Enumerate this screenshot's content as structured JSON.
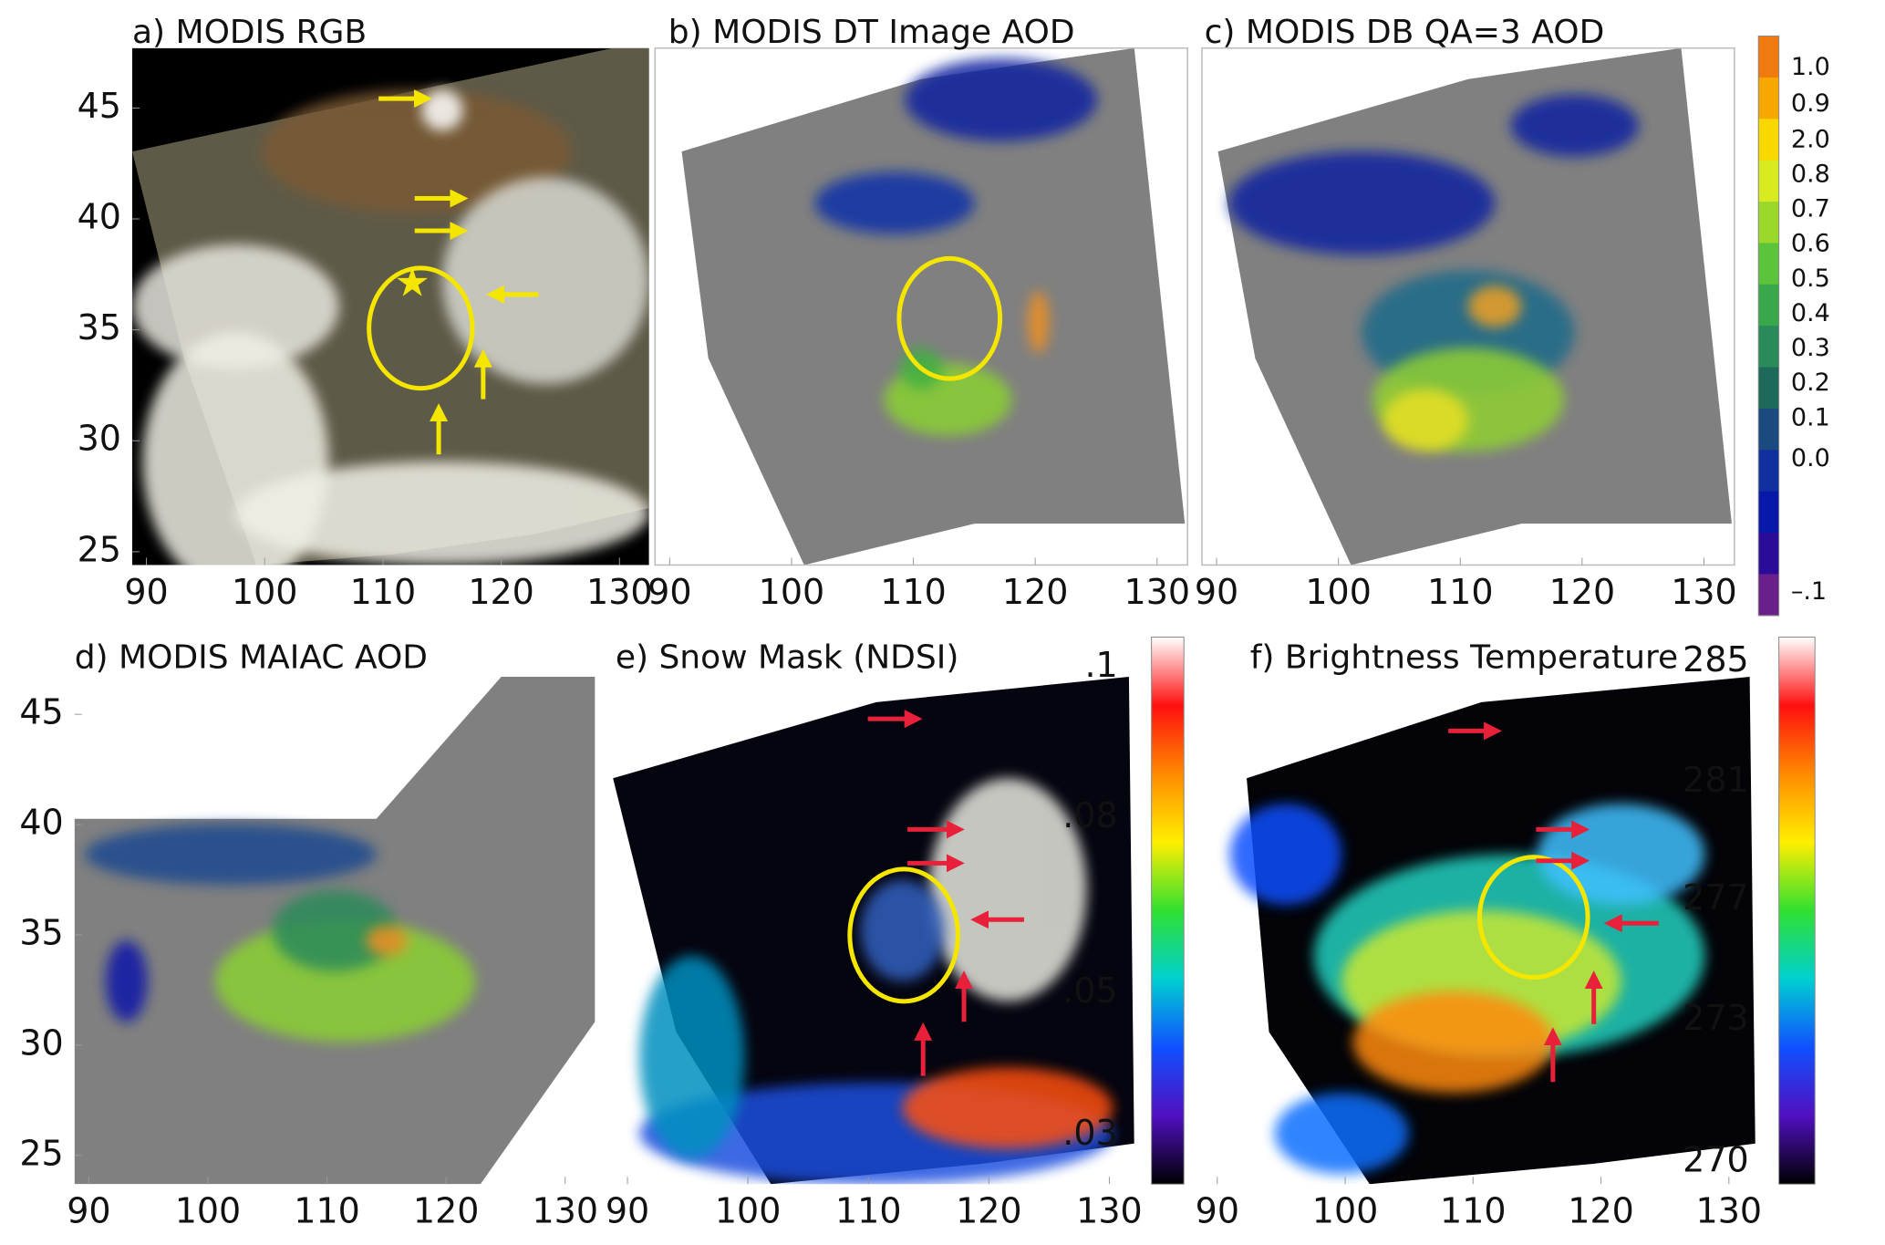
{
  "figure": {
    "panels": [
      {
        "title": "a) MODIS RGB",
        "xlim": [
          88.8,
          132.5
        ],
        "ylim": [
          24.4,
          47.7
        ],
        "xticks": [
          90,
          100,
          110,
          120,
          130
        ],
        "yticks": [
          25,
          30,
          35,
          40,
          45
        ]
      },
      {
        "title": "b) MODIS DT Image AOD",
        "xlim": [
          88.8,
          132.5
        ],
        "xticks": [
          90,
          100,
          110,
          120,
          130
        ]
      },
      {
        "title": "c) MODIS DB QA=3 AOD",
        "xlim": [
          88.8,
          132.5
        ],
        "xticks": [
          90,
          100,
          110,
          120,
          130
        ]
      },
      {
        "title": "d) MODIS MAIAC AOD",
        "xlim": [
          88.8,
          132.5
        ],
        "ylim": [
          23.7,
          46.7
        ],
        "xticks": [
          90,
          100,
          110,
          120,
          130
        ],
        "yticks": [
          25,
          30,
          35,
          40,
          45
        ]
      },
      {
        "title": "e) Snow Mask (NDSI)",
        "xlim": [
          88.8,
          132.5
        ],
        "xticks": [
          90,
          100,
          110,
          120,
          130
        ]
      },
      {
        "title": "f) Brightness Temperature",
        "xlim": [
          88.8,
          132.5
        ],
        "xticks": [
          90,
          100,
          110,
          120,
          130
        ]
      }
    ],
    "colorbars": [
      {
        "labels": [
          "1.0",
          "0.9",
          "2.0",
          "0.8",
          "0.7",
          "0.6",
          "0.5",
          "0.4",
          "0.3",
          "0.2",
          "0.1",
          "0.0",
          "–.1"
        ],
        "colors": [
          "#f07a10",
          "#f6a800",
          "#f8d800",
          "#d8ea20",
          "#9ad82a",
          "#5cc43a",
          "#38a84a",
          "#2a8a5a",
          "#1e6a5a",
          "#1a4a80",
          "#1030a0",
          "#0818a8",
          "#2a0c98",
          "#6a208a"
        ]
      },
      {
        "labels": [
          ".1",
          ".08",
          ".05",
          ".03"
        ],
        "colors": [
          "#ffffff",
          "#ff1010",
          "#ff8a00",
          "#ffee00",
          "#30e030",
          "#00d0d0",
          "#1050ff",
          "#5010c0",
          "#000000"
        ]
      },
      {
        "labels": [
          "285",
          "281",
          "277",
          "273",
          "270"
        ],
        "colors": [
          "#ffffff",
          "#ff1010",
          "#ff8a00",
          "#ffee00",
          "#30e030",
          "#00d0d0",
          "#1050ff",
          "#5010c0",
          "#000000"
        ]
      }
    ]
  }
}
